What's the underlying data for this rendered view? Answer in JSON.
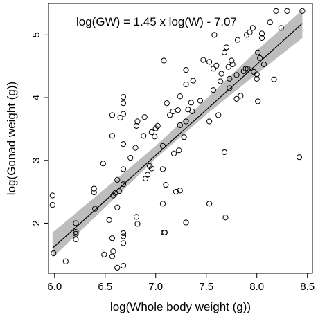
{
  "chart_data": {
    "type": "scatter",
    "title": "",
    "annotation": "log(GW) = 1.45 x log(W) - 7.07",
    "xlabel": "log(Whole body weight (g))",
    "ylabel": "log(Gonad weight (g))",
    "xlim": [
      5.94,
      8.55
    ],
    "ylim": [
      1.2,
      5.5
    ],
    "x_ticks": [
      6.0,
      6.5,
      7.0,
      7.5,
      8.0,
      8.5
    ],
    "x_tick_labels": [
      "6.0",
      "6.5",
      "7.0",
      "7.5",
      "8.0",
      "8.5"
    ],
    "y_ticks": [
      2,
      3,
      4,
      5
    ],
    "y_tick_labels": [
      "2",
      "3",
      "4",
      "5"
    ],
    "grid": false,
    "regression": {
      "slope": 1.45,
      "intercept": -7.07
    },
    "confidence_band": {
      "x": [
        5.98,
        6.5,
        7.0,
        7.5,
        8.0,
        8.45
      ],
      "lower": [
        1.45,
        2.25,
        3.03,
        3.73,
        4.38,
        4.95
      ],
      "upper": [
        1.85,
        2.55,
        3.23,
        3.98,
        4.75,
        5.4
      ]
    },
    "colors": {
      "band": "#bdbdbd",
      "line": "#000000",
      "points": "#000000"
    },
    "points": [
      [
        5.98,
        2.44
      ],
      [
        5.98,
        2.29
      ],
      [
        5.99,
        1.52
      ],
      [
        6.11,
        1.39
      ],
      [
        6.21,
        2.0
      ],
      [
        6.21,
        1.86
      ],
      [
        6.21,
        1.83
      ],
      [
        6.21,
        1.74
      ],
      [
        6.39,
        2.55
      ],
      [
        6.39,
        2.49
      ],
      [
        6.4,
        2.23
      ],
      [
        6.48,
        2.95
      ],
      [
        6.49,
        1.5
      ],
      [
        6.54,
        2.05
      ],
      [
        6.57,
        1.47
      ],
      [
        6.57,
        1.76
      ],
      [
        6.58,
        1.55
      ],
      [
        6.57,
        3.39
      ],
      [
        6.57,
        3.72
      ],
      [
        6.58,
        2.44
      ],
      [
        6.6,
        2.48
      ],
      [
        6.62,
        1.29
      ],
      [
        6.62,
        2.25
      ],
      [
        6.62,
        2.69
      ],
      [
        6.64,
        2.51
      ],
      [
        6.65,
        3.68
      ],
      [
        6.68,
        1.68
      ],
      [
        6.68,
        1.79
      ],
      [
        6.68,
        1.84
      ],
      [
        6.68,
        1.32
      ],
      [
        6.68,
        2.86
      ],
      [
        6.68,
        2.62
      ],
      [
        6.68,
        3.26
      ],
      [
        6.68,
        3.74
      ],
      [
        6.68,
        3.91
      ],
      [
        6.68,
        4.01
      ],
      [
        6.75,
        3.04
      ],
      [
        6.81,
        3.55
      ],
      [
        6.82,
        3.62
      ],
      [
        6.8,
        3.2
      ],
      [
        6.81,
        2.1
      ],
      [
        6.82,
        1.99
      ],
      [
        6.88,
        3.39
      ],
      [
        6.89,
        3.69
      ],
      [
        6.9,
        2.71
      ],
      [
        6.92,
        2.77
      ],
      [
        6.94,
        2.91
      ],
      [
        6.96,
        2.87
      ],
      [
        6.96,
        3.45
      ],
      [
        6.99,
        3.38
      ],
      [
        7.0,
        3.51
      ],
      [
        7.02,
        3.55
      ],
      [
        7.07,
        3.23
      ],
      [
        7.07,
        2.86
      ],
      [
        7.07,
        2.31
      ],
      [
        7.08,
        1.85
      ],
      [
        7.09,
        1.85
      ],
      [
        7.1,
        2.61
      ],
      [
        7.08,
        4.59
      ],
      [
        7.11,
        3.91
      ],
      [
        7.14,
        3.72
      ],
      [
        7.17,
        3.78
      ],
      [
        7.18,
        3.11
      ],
      [
        7.2,
        2.5
      ],
      [
        7.22,
        3.8
      ],
      [
        7.24,
        4.02
      ],
      [
        7.24,
        3.56
      ],
      [
        7.23,
        3.16
      ],
      [
        7.24,
        2.52
      ],
      [
        7.28,
        3.37
      ],
      [
        7.3,
        2.01
      ],
      [
        7.3,
        3.62
      ],
      [
        7.3,
        4.21
      ],
      [
        7.3,
        4.44
      ],
      [
        7.32,
        3.81
      ],
      [
        7.35,
        3.92
      ],
      [
        7.36,
        3.78
      ],
      [
        7.37,
        4.27
      ],
      [
        7.44,
        3.95
      ],
      [
        7.47,
        4.6
      ],
      [
        7.53,
        4.57
      ],
      [
        7.53,
        3.62
      ],
      [
        7.53,
        2.31
      ],
      [
        7.57,
        4.12
      ],
      [
        7.57,
        4.46
      ],
      [
        7.58,
        5.0
      ],
      [
        7.6,
        4.51
      ],
      [
        7.62,
        3.72
      ],
      [
        7.64,
        4.26
      ],
      [
        7.65,
        4.38
      ],
      [
        7.68,
        4.72
      ],
      [
        7.68,
        3.13
      ],
      [
        7.69,
        2.09
      ],
      [
        7.7,
        4.8
      ],
      [
        7.72,
        4.49
      ],
      [
        7.73,
        4.3
      ],
      [
        7.73,
        4.15
      ],
      [
        7.75,
        4.59
      ],
      [
        7.76,
        4.53
      ],
      [
        7.8,
        3.98
      ],
      [
        7.8,
        4.36
      ],
      [
        7.81,
        4.92
      ],
      [
        7.84,
        4.03
      ],
      [
        7.87,
        4.42
      ],
      [
        7.89,
        4.46
      ],
      [
        7.91,
        4.46
      ],
      [
        7.9,
        5.0
      ],
      [
        7.93,
        5.04
      ],
      [
        7.96,
        5.11
      ],
      [
        7.97,
        4.41
      ],
      [
        8.0,
        4.37
      ],
      [
        8.0,
        4.3
      ],
      [
        8.01,
        3.94
      ],
      [
        8.01,
        4.72
      ],
      [
        8.03,
        4.63
      ],
      [
        8.05,
        5.02
      ],
      [
        8.05,
        4.95
      ],
      [
        8.07,
        4.53
      ],
      [
        8.13,
        5.2
      ],
      [
        8.17,
        4.29
      ],
      [
        8.19,
        5.38
      ],
      [
        8.24,
        5.11
      ],
      [
        8.3,
        5.38
      ],
      [
        8.42,
        3.05
      ],
      [
        8.45,
        5.38
      ]
    ]
  }
}
